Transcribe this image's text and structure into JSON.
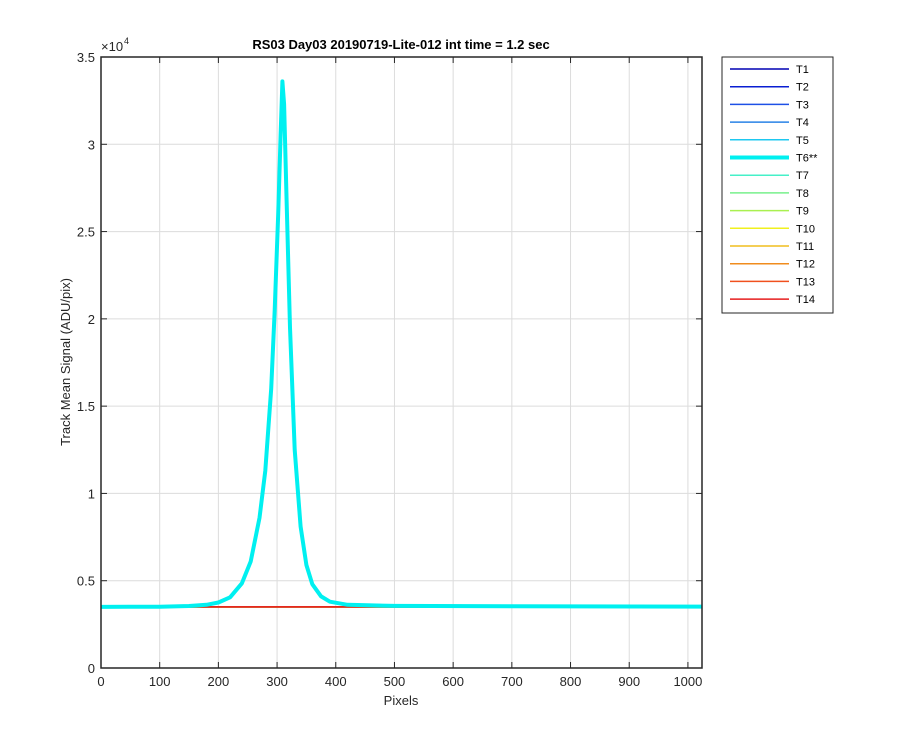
{
  "chart_data": {
    "type": "line",
    "title": "RS03 Day03 20190719-Lite-012 int time = 1.2 sec",
    "xlabel": "Pixels",
    "ylabel": "Track Mean Signal (ADU/pix)",
    "xlim": [
      0,
      1024
    ],
    "ylim": [
      0,
      35000
    ],
    "y_exponent_label": "×10",
    "y_exponent_power": "4",
    "y_tick_scale": 10000,
    "xticks": [
      0,
      100,
      200,
      300,
      400,
      500,
      600,
      700,
      800,
      900,
      1000
    ],
    "yticks": [
      0,
      0.5,
      1,
      1.5,
      2,
      2.5,
      3,
      3.5
    ],
    "ytick_labels": [
      "0",
      "0.5",
      "1",
      "1.5",
      "2",
      "2.5",
      "3",
      "3.5"
    ],
    "grid": true,
    "legend_position": "outside-right",
    "baseline_value": 3520,
    "series": [
      {
        "name": "T1",
        "color": "#0000b4",
        "width": 1.5,
        "x": [
          0,
          1024
        ],
        "y": [
          3500,
          3500
        ]
      },
      {
        "name": "T2",
        "color": "#0a1ed2",
        "width": 1.5,
        "x": [
          0,
          1024
        ],
        "y": [
          3500,
          3500
        ]
      },
      {
        "name": "T3",
        "color": "#1e50e6",
        "width": 1.5,
        "x": [
          0,
          1024
        ],
        "y": [
          3500,
          3500
        ]
      },
      {
        "name": "T4",
        "color": "#2882e6",
        "width": 1.5,
        "x": [
          0,
          1024
        ],
        "y": [
          3500,
          3500
        ]
      },
      {
        "name": "T5",
        "color": "#1ec8f0",
        "width": 1.5,
        "x": [
          0,
          1024
        ],
        "y": [
          3500,
          3500
        ]
      },
      {
        "name": "T6**",
        "color": "#00f0f0",
        "width": 4,
        "x": [
          0,
          100,
          150,
          180,
          200,
          220,
          240,
          255,
          270,
          280,
          290,
          296,
          302,
          306,
          309,
          312,
          316,
          322,
          330,
          340,
          350,
          360,
          375,
          390,
          420,
          500,
          700,
          1024
        ],
        "y": [
          3500,
          3510,
          3550,
          3620,
          3750,
          4050,
          4850,
          6100,
          8600,
          11300,
          16000,
          20500,
          26000,
          30500,
          33600,
          32300,
          27000,
          19500,
          12500,
          8100,
          5900,
          4800,
          4100,
          3800,
          3620,
          3560,
          3540,
          3520
        ]
      },
      {
        "name": "T7",
        "color": "#46f0c8",
        "width": 1.5,
        "x": [
          0,
          1024
        ],
        "y": [
          3500,
          3500
        ]
      },
      {
        "name": "T8",
        "color": "#78f08c",
        "width": 1.5,
        "x": [
          0,
          1024
        ],
        "y": [
          3500,
          3500
        ]
      },
      {
        "name": "T9",
        "color": "#aaf050",
        "width": 1.5,
        "x": [
          0,
          1024
        ],
        "y": [
          3500,
          3500
        ]
      },
      {
        "name": "T10",
        "color": "#f0f01e",
        "width": 1.5,
        "x": [
          0,
          1024
        ],
        "y": [
          3500,
          3500
        ]
      },
      {
        "name": "T11",
        "color": "#f0be1e",
        "width": 1.5,
        "x": [
          0,
          1024
        ],
        "y": [
          3500,
          3500
        ]
      },
      {
        "name": "T12",
        "color": "#f08c1e",
        "width": 1.5,
        "x": [
          0,
          1024
        ],
        "y": [
          3500,
          3500
        ]
      },
      {
        "name": "T13",
        "color": "#f0501e",
        "width": 1.5,
        "x": [
          0,
          1024
        ],
        "y": [
          3500,
          3500
        ]
      },
      {
        "name": "T14",
        "color": "#e61e1e",
        "width": 1.5,
        "x": [
          0,
          1024
        ],
        "y": [
          3500,
          3500
        ]
      }
    ]
  }
}
